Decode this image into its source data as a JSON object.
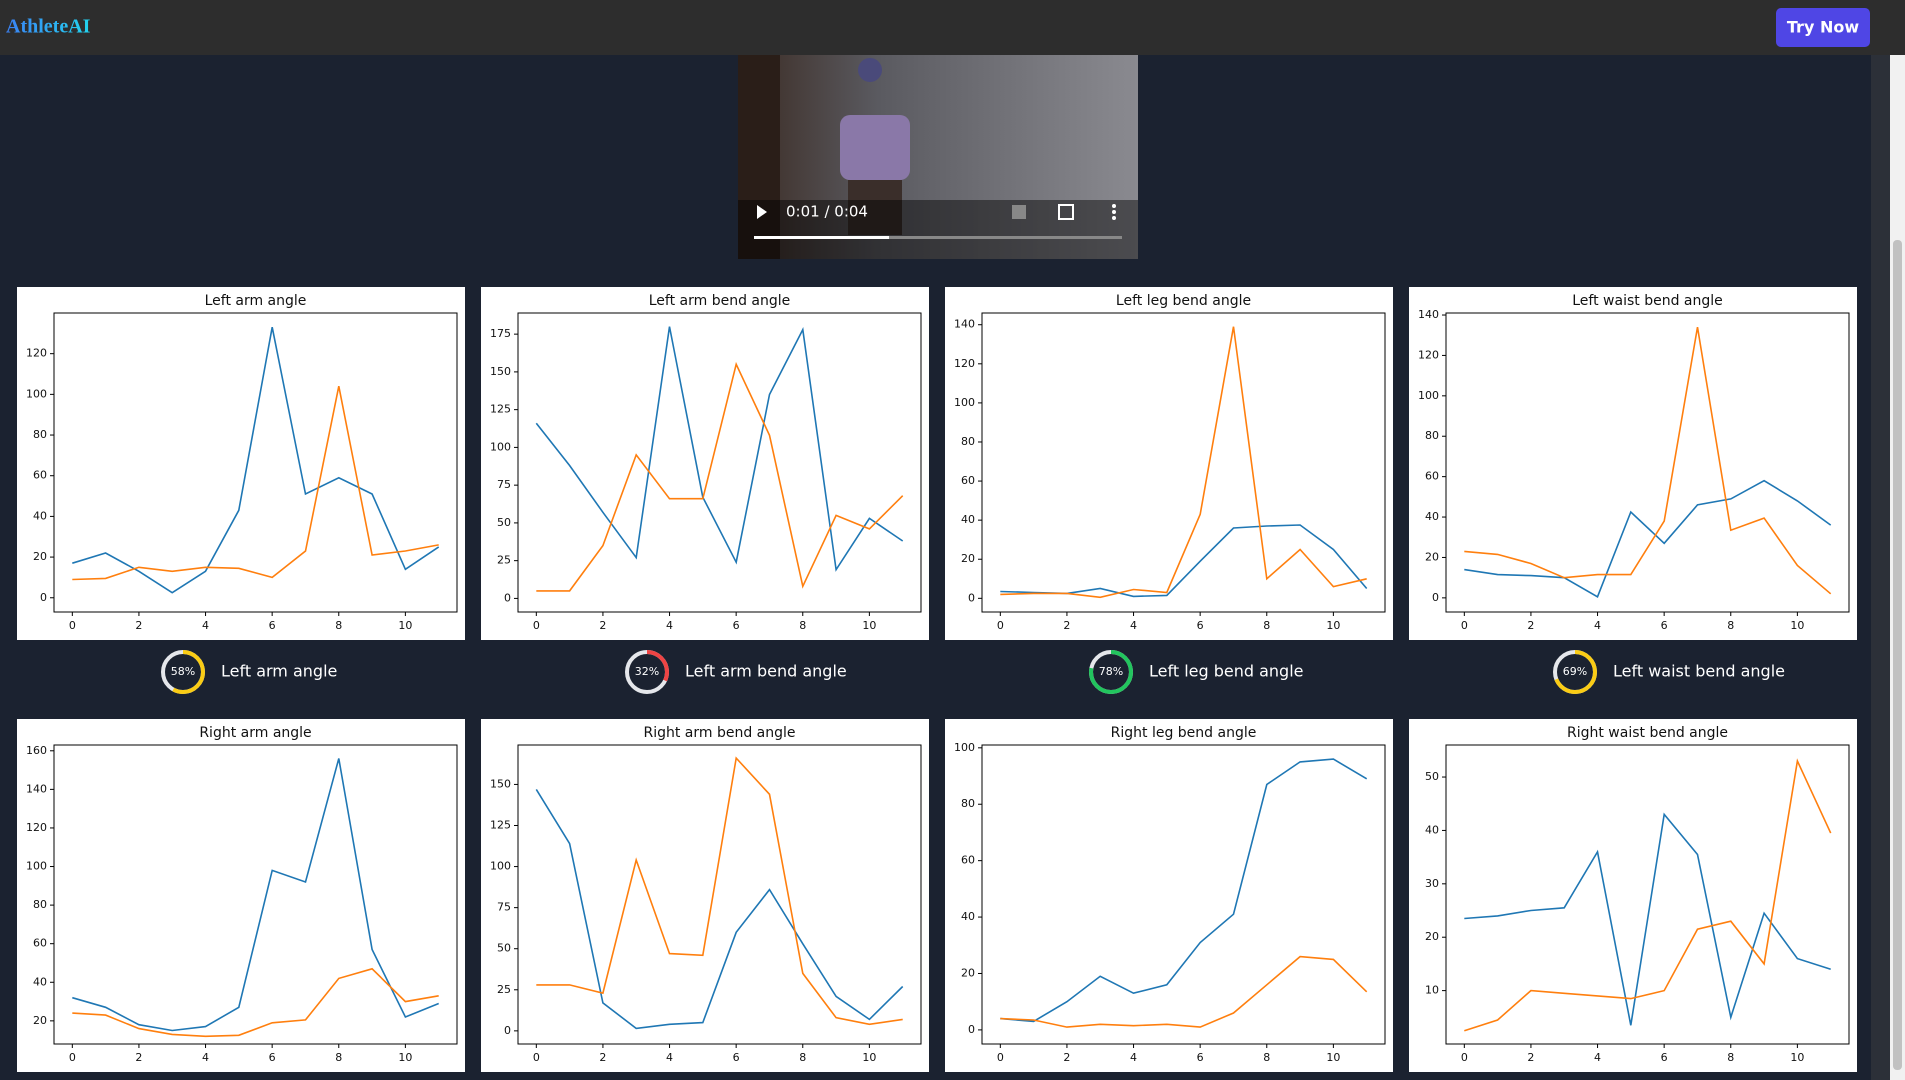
{
  "header": {
    "brand": "AthleteAI",
    "button": "Try Now"
  },
  "video": {
    "time": "0:01 / 0:04"
  },
  "chart_data": [
    {
      "type": "line",
      "title": "Left arm angle",
      "x": [
        0,
        1,
        2,
        3,
        4,
        5,
        6,
        7,
        8,
        9,
        10,
        11
      ],
      "xlim": [
        -0.55,
        11.55
      ],
      "xticks": [
        0,
        2,
        4,
        6,
        8,
        10
      ],
      "ylim": [
        -7,
        140
      ],
      "yticks": [
        0,
        20,
        40,
        60,
        80,
        100,
        120
      ],
      "series": [
        {
          "color": "#1f77b4",
          "values": [
            17,
            22,
            13,
            2.5,
            13,
            43,
            133,
            51,
            59,
            51,
            14,
            25
          ]
        },
        {
          "color": "#ff7f0e",
          "values": [
            9,
            9.5,
            15,
            13,
            15,
            14.5,
            10,
            23,
            104,
            21,
            23,
            26
          ]
        }
      ]
    },
    {
      "type": "line",
      "title": "Left arm bend angle",
      "x": [
        0,
        1,
        2,
        3,
        4,
        5,
        6,
        7,
        8,
        9,
        10,
        11
      ],
      "xlim": [
        -0.55,
        11.55
      ],
      "xticks": [
        0,
        2,
        4,
        6,
        8,
        10
      ],
      "ylim": [
        -9,
        189
      ],
      "yticks": [
        0,
        25,
        50,
        75,
        100,
        125,
        150,
        175
      ],
      "series": [
        {
          "color": "#1f77b4",
          "values": [
            116,
            88,
            57,
            27,
            180,
            67,
            24,
            135,
            178,
            19,
            53,
            38
          ]
        },
        {
          "color": "#ff7f0e",
          "values": [
            5,
            5,
            35,
            95,
            66,
            66,
            155,
            108,
            8,
            55,
            46,
            68
          ]
        }
      ]
    },
    {
      "type": "line",
      "title": "Left leg bend angle",
      "x": [
        0,
        1,
        2,
        3,
        4,
        5,
        6,
        7,
        8,
        9,
        10,
        11
      ],
      "xlim": [
        -0.55,
        11.55
      ],
      "xticks": [
        0,
        2,
        4,
        6,
        8,
        10
      ],
      "ylim": [
        -7,
        146
      ],
      "yticks": [
        0,
        20,
        40,
        60,
        80,
        100,
        120,
        140
      ],
      "series": [
        {
          "color": "#1f77b4",
          "values": [
            3.5,
            3,
            2.5,
            5,
            1,
            1.5,
            19,
            36,
            37,
            37.5,
            25,
            5
          ]
        },
        {
          "color": "#ff7f0e",
          "values": [
            2,
            2.5,
            2.5,
            0.5,
            4.5,
            3,
            43,
            139,
            10,
            25,
            6,
            10
          ]
        }
      ]
    },
    {
      "type": "line",
      "title": "Left waist bend angle",
      "x": [
        0,
        1,
        2,
        3,
        4,
        5,
        6,
        7,
        8,
        9,
        10,
        11
      ],
      "xlim": [
        -0.55,
        11.55
      ],
      "xticks": [
        0,
        2,
        4,
        6,
        8,
        10
      ],
      "ylim": [
        -7,
        141
      ],
      "yticks": [
        0,
        20,
        40,
        60,
        80,
        100,
        120,
        140
      ],
      "series": [
        {
          "color": "#1f77b4",
          "values": [
            14,
            11.5,
            11,
            10,
            0.5,
            42.5,
            27,
            46,
            49,
            58,
            48,
            36
          ]
        },
        {
          "color": "#ff7f0e",
          "values": [
            23,
            21.5,
            17,
            10,
            11.5,
            11.5,
            38,
            134,
            33.5,
            39.5,
            16,
            2
          ]
        }
      ]
    },
    {
      "type": "line",
      "title": "Right arm angle",
      "x": [
        0,
        1,
        2,
        3,
        4,
        5,
        6,
        7,
        8,
        9,
        10,
        11
      ],
      "xlim": [
        -0.55,
        11.55
      ],
      "xticks": [
        0,
        2,
        4,
        6,
        8,
        10
      ],
      "ylim": [
        8,
        163
      ],
      "yticks": [
        20,
        40,
        60,
        80,
        100,
        120,
        140,
        160
      ],
      "series": [
        {
          "color": "#1f77b4",
          "values": [
            32,
            27,
            18,
            15,
            17,
            27,
            98,
            92,
            156,
            57,
            22,
            29
          ]
        },
        {
          "color": "#ff7f0e",
          "values": [
            24,
            23,
            16,
            13,
            12,
            12.5,
            19,
            20.5,
            42,
            47,
            30,
            33
          ]
        }
      ]
    },
    {
      "type": "line",
      "title": "Right arm bend angle",
      "x": [
        0,
        1,
        2,
        3,
        4,
        5,
        6,
        7,
        8,
        9,
        10,
        11
      ],
      "xlim": [
        -0.55,
        11.55
      ],
      "xticks": [
        0,
        2,
        4,
        6,
        8,
        10
      ],
      "ylim": [
        -8,
        174
      ],
      "yticks": [
        0,
        25,
        50,
        75,
        100,
        125,
        150
      ],
      "series": [
        {
          "color": "#1f77b4",
          "values": [
            147,
            114,
            17,
            1.5,
            4,
            5,
            60,
            86,
            53,
            21,
            7,
            27
          ]
        },
        {
          "color": "#ff7f0e",
          "values": [
            28,
            28,
            23,
            104,
            47,
            46,
            166,
            144,
            35,
            8,
            4,
            7
          ]
        }
      ]
    },
    {
      "type": "line",
      "title": "Right leg bend angle",
      "x": [
        0,
        1,
        2,
        3,
        4,
        5,
        6,
        7,
        8,
        9,
        10,
        11
      ],
      "xlim": [
        -0.55,
        11.55
      ],
      "xticks": [
        0,
        2,
        4,
        6,
        8,
        10
      ],
      "ylim": [
        -5,
        101
      ],
      "yticks": [
        0,
        20,
        40,
        60,
        80,
        100
      ],
      "series": [
        {
          "color": "#1f77b4",
          "values": [
            4,
            3,
            10,
            19,
            13,
            16,
            31,
            41,
            87,
            95,
            96,
            89
          ]
        },
        {
          "color": "#ff7f0e",
          "values": [
            4,
            3.5,
            1,
            2,
            1.5,
            2,
            1,
            6,
            16,
            26,
            25,
            13.5
          ]
        }
      ]
    },
    {
      "type": "line",
      "title": "Right waist bend angle",
      "x": [
        0,
        1,
        2,
        3,
        4,
        5,
        6,
        7,
        8,
        9,
        10,
        11
      ],
      "xlim": [
        -0.55,
        11.55
      ],
      "xticks": [
        0,
        2,
        4,
        6,
        8,
        10
      ],
      "ylim": [
        0,
        56
      ],
      "yticks": [
        10,
        20,
        30,
        40,
        50
      ],
      "series": [
        {
          "color": "#1f77b4",
          "values": [
            23.5,
            24,
            25,
            25.5,
            36,
            3.5,
            43,
            35.5,
            5,
            24.5,
            16,
            14
          ]
        },
        {
          "color": "#ff7f0e",
          "values": [
            2.5,
            4.5,
            10,
            9.5,
            9,
            8.5,
            10,
            21.5,
            23,
            15,
            53,
            39.5
          ]
        }
      ]
    }
  ],
  "scores": [
    {
      "value": 58,
      "label": "58%",
      "name": "Left arm angle",
      "color": "#facc15"
    },
    {
      "value": 32,
      "label": "32%",
      "name": "Left arm bend angle",
      "color": "#ef4444"
    },
    {
      "value": 78,
      "label": "78%",
      "name": "Left leg bend angle",
      "color": "#22c55e"
    },
    {
      "value": 69,
      "label": "69%",
      "name": "Left waist bend angle",
      "color": "#facc15"
    }
  ]
}
